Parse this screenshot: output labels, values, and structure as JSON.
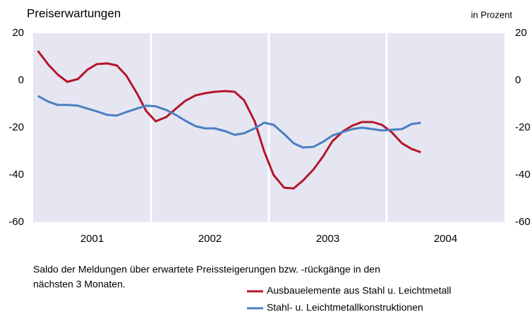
{
  "chart_data": {
    "type": "line",
    "title": "Preiserwartungen",
    "unit_label": "in Prozent",
    "note": [
      "Saldo der Meldungen über erwartete Preissteigerungen bzw. -rückgänge in den",
      "nächsten 3 Monaten."
    ],
    "year_labels": [
      "2001",
      "2002",
      "2003",
      "2004"
    ],
    "xlim": [
      2001,
      2005
    ],
    "ylim": [
      -60,
      20
    ],
    "yticks": [
      20,
      0,
      -20,
      -40,
      -60
    ],
    "x": [
      2001.04,
      2001.13,
      2001.21,
      2001.29,
      2001.38,
      2001.46,
      2001.54,
      2001.63,
      2001.71,
      2001.79,
      2001.88,
      2001.96,
      2002.04,
      2002.13,
      2002.21,
      2002.29,
      2002.38,
      2002.46,
      2002.54,
      2002.63,
      2002.71,
      2002.79,
      2002.88,
      2002.96,
      2003.04,
      2003.13,
      2003.21,
      2003.29,
      2003.38,
      2003.46,
      2003.54,
      2003.63,
      2003.71,
      2003.79,
      2003.88,
      2003.96,
      2004.04,
      2004.13,
      2004.21,
      2004.29
    ],
    "series": [
      {
        "name": "Ausbauelemente aus Stahl u. Leichtmetall",
        "color": "#b5152b",
        "values": [
          12.5,
          6.6,
          2.4,
          -0.6,
          0.6,
          4.5,
          6.9,
          7.2,
          6.3,
          2.1,
          -5.4,
          -13,
          -17.3,
          -15.5,
          -12,
          -8.7,
          -6.3,
          -5.4,
          -4.8,
          -4.5,
          -4.8,
          -8.4,
          -17.3,
          -29.9,
          -40,
          -45.4,
          -45.7,
          -42.4,
          -37.6,
          -32.2,
          -25.7,
          -21.5,
          -19.1,
          -17.6,
          -17.6,
          -18.8,
          -21.8,
          -26.6,
          -29,
          -30.4
        ]
      },
      {
        "name": "Stahl- u. Leichtmetallkonstruktionen",
        "color": "#4a7fc1",
        "values": [
          -6.6,
          -9,
          -10.4,
          -10.4,
          -10.7,
          -11.9,
          -13.1,
          -14.6,
          -14.9,
          -13.4,
          -11.9,
          -10.7,
          -11,
          -12.5,
          -14.6,
          -17,
          -19.4,
          -20.3,
          -20.3,
          -21.5,
          -23,
          -22.4,
          -20.3,
          -17.9,
          -18.8,
          -22.7,
          -26.6,
          -28.4,
          -28.1,
          -26,
          -23.3,
          -21.8,
          -20.6,
          -20,
          -20.6,
          -21.2,
          -20.9,
          -20.6,
          -18.5,
          -17.9
        ]
      }
    ]
  }
}
